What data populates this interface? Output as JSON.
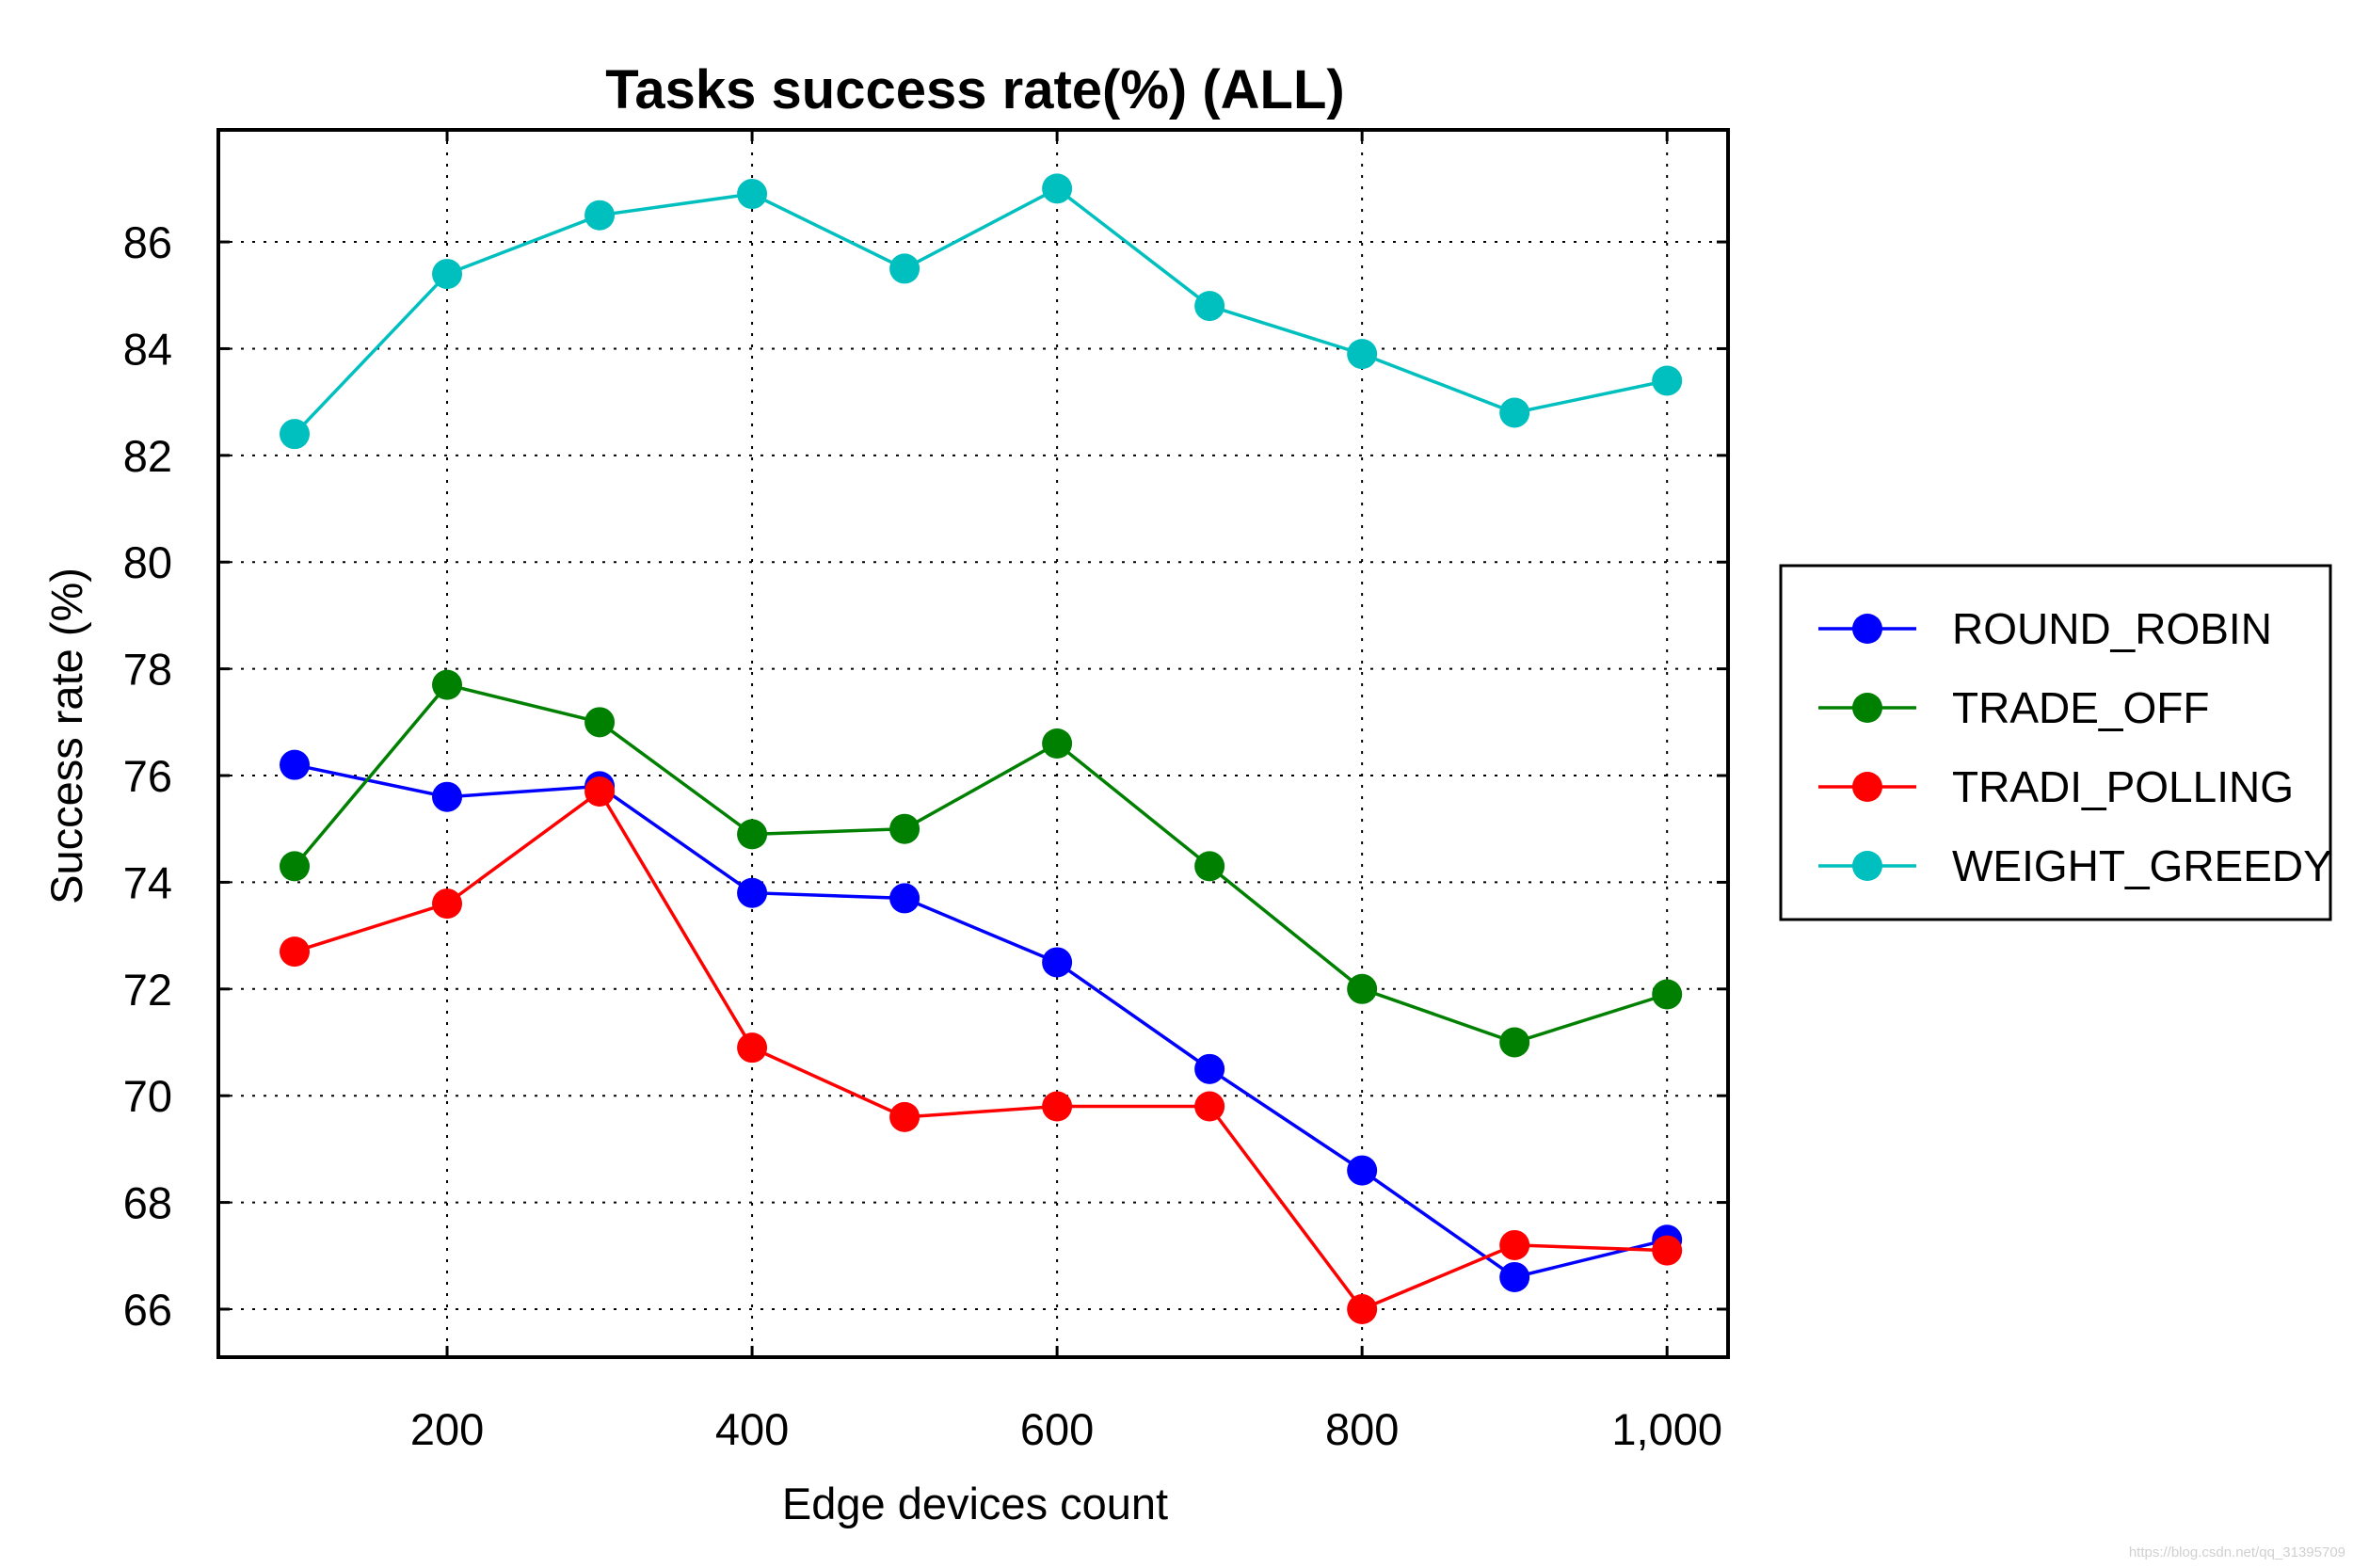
{
  "chart_data": {
    "type": "line",
    "title": "Tasks success rate(%) (ALL)",
    "xlabel": "Edge devices count",
    "ylabel": "Success rate (%)",
    "x": [
      100,
      200,
      300,
      400,
      500,
      600,
      700,
      800,
      900,
      1000
    ],
    "xlim": [
      50,
      1040
    ],
    "ylim": [
      65.1,
      88.1
    ],
    "xticks": [
      200,
      400,
      600,
      800,
      1000
    ],
    "xtick_labels": [
      "200",
      "400",
      "600",
      "800",
      "1,000"
    ],
    "yticks": [
      66,
      68,
      70,
      72,
      74,
      76,
      78,
      80,
      82,
      84,
      86
    ],
    "ytick_labels": [
      "66",
      "68",
      "70",
      "72",
      "74",
      "76",
      "78",
      "80",
      "82",
      "84",
      "86"
    ],
    "grid": true,
    "grid_style": "dotted",
    "legend_position": "right, outside plot",
    "series": [
      {
        "name": "ROUND_ROBIN",
        "color": "#0000ff",
        "marker": "circle",
        "values": [
          76.2,
          75.6,
          75.8,
          73.8,
          73.7,
          72.5,
          70.5,
          68.6,
          66.6,
          67.3
        ]
      },
      {
        "name": "TRADE_OFF",
        "color": "#008000",
        "marker": "circle",
        "values": [
          74.3,
          77.7,
          77.0,
          74.9,
          75.0,
          76.6,
          74.3,
          72.0,
          71.0,
          71.9
        ]
      },
      {
        "name": "TRADI_POLLING",
        "color": "#ff0000",
        "marker": "circle",
        "values": [
          72.7,
          73.6,
          75.7,
          70.9,
          69.6,
          69.8,
          69.8,
          66.0,
          67.2,
          67.1
        ]
      },
      {
        "name": "WEIGHT_GREEDY",
        "color": "#00bfbf",
        "marker": "circle",
        "values": [
          82.4,
          85.4,
          86.5,
          86.9,
          85.5,
          87.0,
          84.8,
          83.9,
          82.8,
          83.4
        ]
      }
    ]
  },
  "watermark": "https://blog.csdn.net/qq_31395709"
}
